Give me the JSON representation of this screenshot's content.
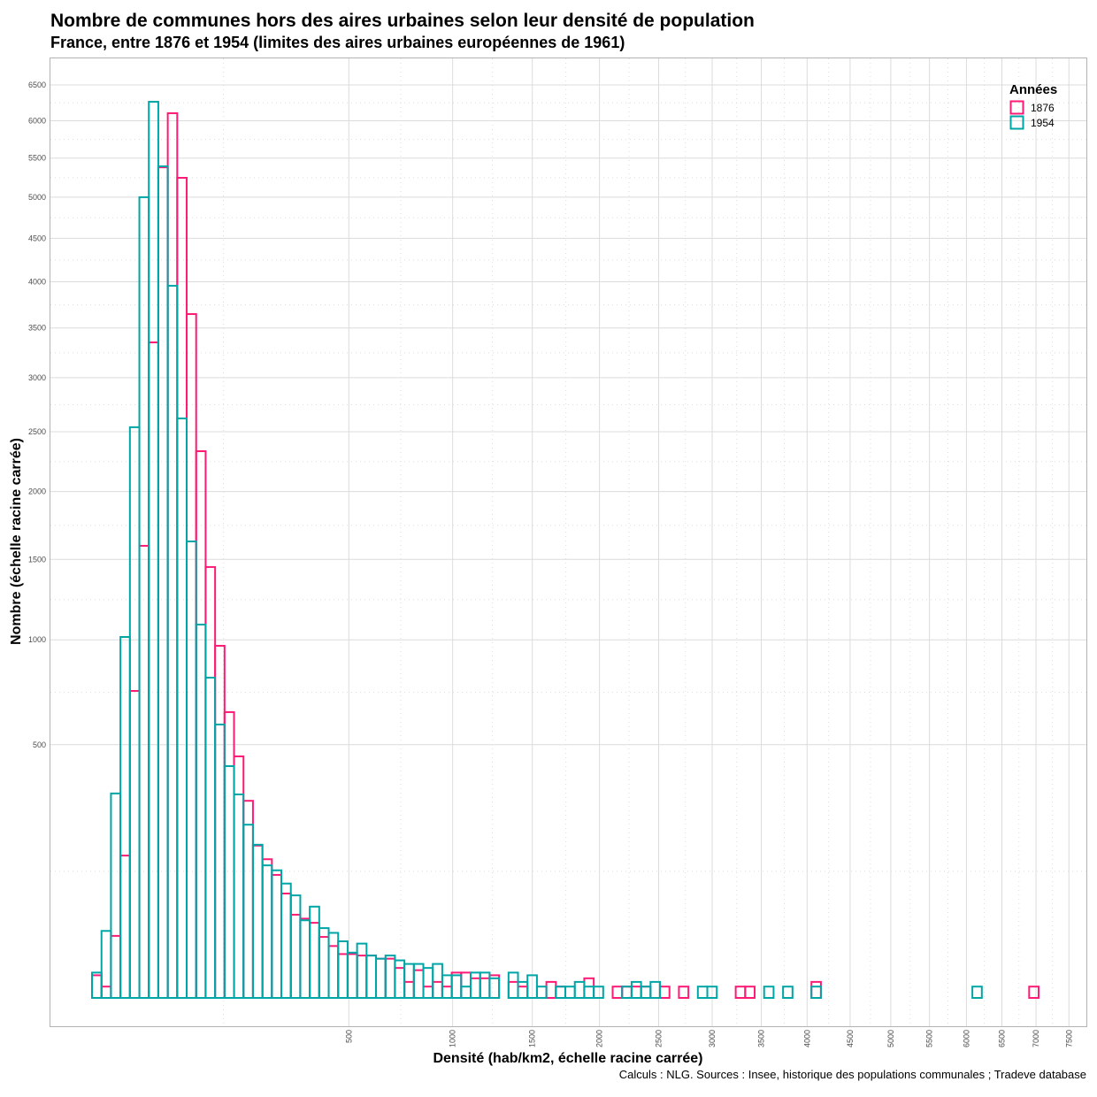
{
  "chart_data": {
    "type": "bar",
    "subtype": "histogram",
    "title": "Nombre de communes hors des aires urbaines selon leur densité de population",
    "subtitle": "France, entre 1876 et 1954 (limites des aires urbaines européennes de 1961)",
    "xlabel": "Densité (hab/km2, échelle racine carrée)",
    "ylabel": "Nombre (échelle racine carrée)",
    "caption": "Calculs : NLG. Sources : Insee, historique des populations communales ; Tradeve database",
    "x_scale": "sqrt",
    "y_scale": "sqrt",
    "xlim": [
      0,
      7800
    ],
    "ylim": [
      0,
      6800
    ],
    "x_ticks": [
      "500",
      "1000",
      "1500",
      "2000",
      "2500",
      "3000",
      "3500",
      "4000",
      "4500",
      "5000",
      "5500",
      "6000",
      "6500",
      "7000",
      "7500"
    ],
    "y_ticks": [
      "500",
      "1000",
      "1500",
      "2000",
      "2500",
      "3000",
      "3500",
      "4000",
      "4500",
      "5000",
      "5500",
      "6000",
      "6500"
    ],
    "bins": 100,
    "bin_start_sqrt": -0.55,
    "bin_width_sqrt": 0.8445,
    "grid": true,
    "legend": {
      "title": "Années",
      "position": "top-right"
    },
    "series": [
      {
        "name": "1876",
        "color": "#FF1A75",
        "values": [
          4,
          1,
          30,
          158,
          735,
          1594,
          3351,
          5380,
          6104,
          5245,
          3647,
          2331,
          1448,
          967,
          637,
          455,
          303,
          181,
          150,
          118,
          85,
          54,
          49,
          44,
          29,
          21,
          15,
          15,
          14,
          14,
          12,
          12,
          7,
          2,
          6,
          1,
          2,
          1,
          5,
          5,
          3,
          3,
          4,
          0,
          2,
          1,
          0,
          0,
          2,
          1,
          0,
          0,
          3,
          0,
          0,
          1,
          1,
          1,
          1,
          0,
          1,
          0,
          1,
          0,
          0,
          0,
          0,
          0,
          1,
          1,
          0,
          0,
          0,
          0,
          0,
          0,
          2,
          0,
          0,
          0,
          0,
          0,
          0,
          0,
          0,
          0,
          0,
          0,
          0,
          0,
          0,
          0,
          0,
          0,
          0,
          0,
          0,
          0,
          0,
          1
        ]
      },
      {
        "name": "1954",
        "color": "#00A6A6",
        "values": [
          5,
          35,
          326,
          1016,
          2540,
          5000,
          6263,
          5393,
          3955,
          2619,
          1625,
          1087,
          800,
          583,
          419,
          323,
          234,
          183,
          137,
          127,
          102,
          82,
          47,
          65,
          38,
          33,
          25,
          16,
          23,
          14,
          12,
          14,
          11,
          9,
          9,
          7,
          9,
          4,
          4,
          1,
          5,
          5,
          3,
          0,
          5,
          2,
          4,
          1,
          0,
          1,
          1,
          2,
          1,
          1,
          0,
          0,
          1,
          2,
          1,
          2,
          0,
          0,
          0,
          0,
          1,
          1,
          0,
          0,
          0,
          0,
          0,
          1,
          0,
          1,
          0,
          0,
          1,
          0,
          0,
          0,
          0,
          0,
          0,
          0,
          0,
          0,
          0,
          0,
          0,
          0,
          0,
          0,
          0,
          1,
          0,
          0,
          0,
          0,
          0,
          0
        ]
      }
    ]
  }
}
